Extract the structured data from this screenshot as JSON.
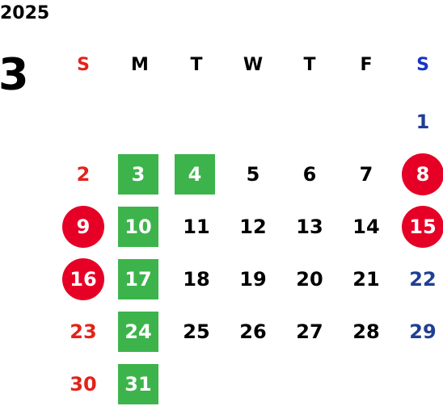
{
  "year": "2025",
  "month": "3",
  "weekdays": [
    "S",
    "M",
    "T",
    "W",
    "T",
    "F",
    "S"
  ],
  "weeks": [
    [
      null,
      null,
      null,
      null,
      null,
      null,
      {
        "day": 1
      }
    ],
    [
      {
        "day": 2
      },
      {
        "day": 3,
        "style": "square"
      },
      {
        "day": 4,
        "style": "square"
      },
      {
        "day": 5
      },
      {
        "day": 6
      },
      {
        "day": 7
      },
      {
        "day": 8,
        "style": "circle"
      }
    ],
    [
      {
        "day": 9,
        "style": "circle"
      },
      {
        "day": 10,
        "style": "square"
      },
      {
        "day": 11
      },
      {
        "day": 12
      },
      {
        "day": 13
      },
      {
        "day": 14
      },
      {
        "day": 15,
        "style": "circle"
      }
    ],
    [
      {
        "day": 16,
        "style": "circle"
      },
      {
        "day": 17,
        "style": "square"
      },
      {
        "day": 18
      },
      {
        "day": 19
      },
      {
        "day": 20
      },
      {
        "day": 21
      },
      {
        "day": 22
      }
    ],
    [
      {
        "day": 23
      },
      {
        "day": 24,
        "style": "square"
      },
      {
        "day": 25
      },
      {
        "day": 26
      },
      {
        "day": 27
      },
      {
        "day": 28
      },
      {
        "day": 29
      }
    ],
    [
      {
        "day": 30
      },
      {
        "day": 31,
        "style": "square"
      },
      null,
      null,
      null,
      null,
      null
    ]
  ]
}
